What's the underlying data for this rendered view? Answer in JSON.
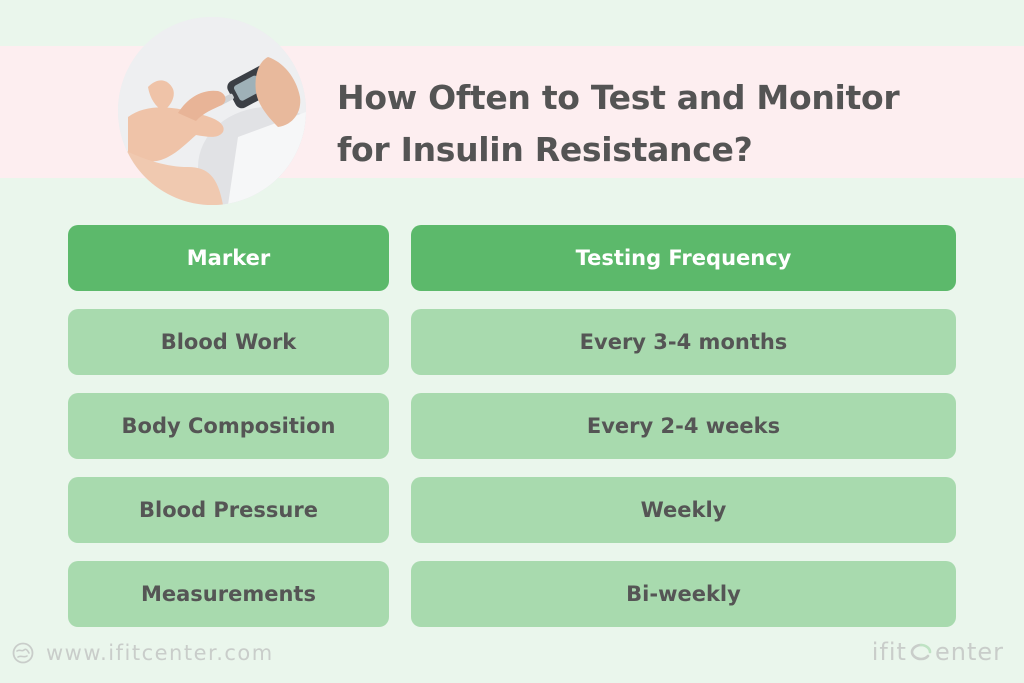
{
  "title": {
    "line1": "How Often to Test and Monitor",
    "line2": "for Insulin Resistance?"
  },
  "table": {
    "headers": [
      "Marker",
      "Testing Frequency"
    ],
    "rows": [
      [
        "Blood Work",
        "Every 3-4 months"
      ],
      [
        "Body Composition",
        "Every 2-4 weeks"
      ],
      [
        "Blood Pressure",
        "Weekly"
      ],
      [
        "Measurements",
        "Bi-weekly"
      ]
    ]
  },
  "footer": {
    "url": "www.ifitcenter.com",
    "logo_prefix": "ifit",
    "logo_suffix": "enter",
    "url_icon": "globe-icon",
    "logo_icon": "ifit-logo-icon"
  },
  "photo": {
    "icon": "glucose-meter-photo"
  },
  "colors": {
    "background": "#eaf6ec",
    "band": "#fdeef0",
    "header_cell": "#5cb96b",
    "body_cell": "#a8daae",
    "title_text": "#545454",
    "footer_text": "#c9cdca"
  }
}
